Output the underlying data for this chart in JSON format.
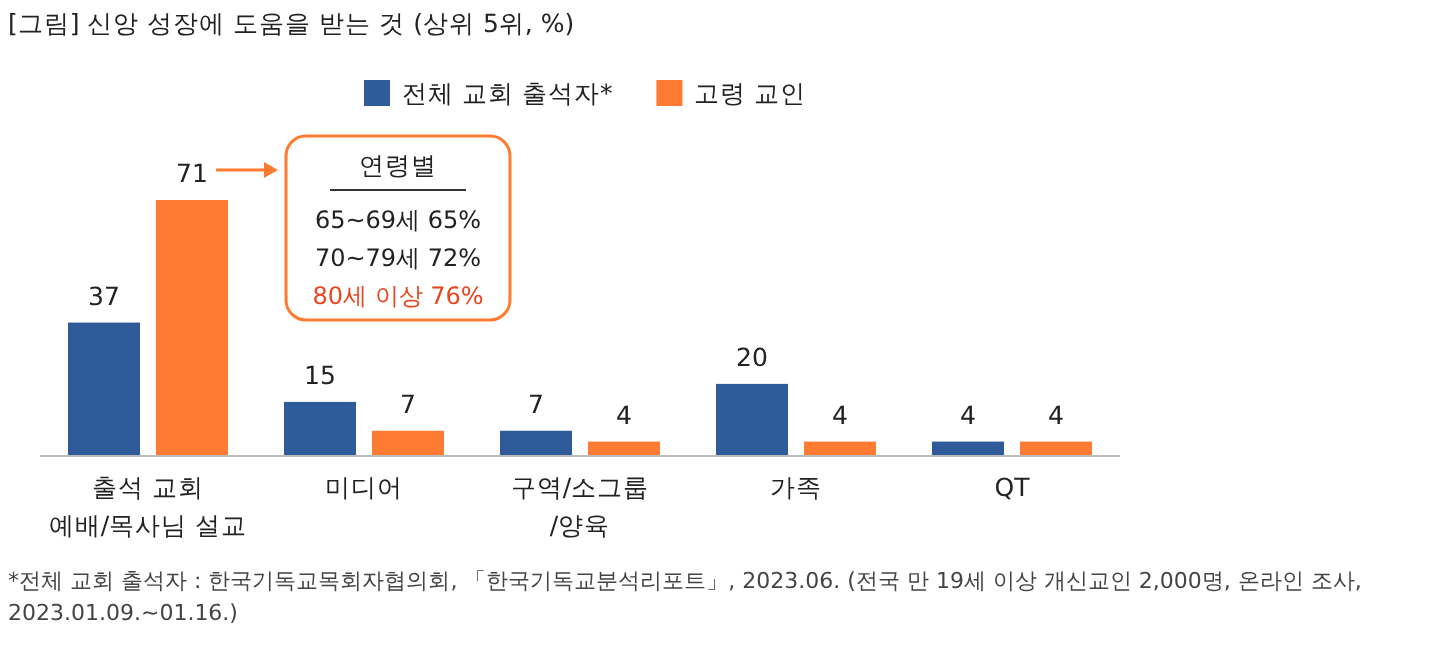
{
  "chart_data": {
    "type": "bar",
    "title": "[그림] 신앙 성장에 도움을 받는 것 (상위 5위, %)",
    "categories": [
      "출석 교회\n예배/목사님 설교",
      "미디어",
      "구역/소그룹\n/양육",
      "가족",
      "QT"
    ],
    "series": [
      {
        "name": "전체 교회 출석자*",
        "color": "#2f5b9b",
        "values": [
          37,
          15,
          7,
          20,
          4
        ]
      },
      {
        "name": "고령 교인",
        "color": "#ff7b31",
        "values": [
          71,
          7,
          4,
          4,
          4
        ]
      }
    ],
    "data_labels": true,
    "legend": "top",
    "annotations": [
      "연령별",
      "65~69세  65%",
      "70~79세  72%",
      "80세 이상  76%",
      "*전체 교회 출석자 : 한국기독교목회자협의회, 「한국기독교분석리포트」, 2023.06. (전국 만 19세 이상 개신교인 2,000명, 온라인 조사, 2023.01.09.~01.16.)"
    ]
  }
}
